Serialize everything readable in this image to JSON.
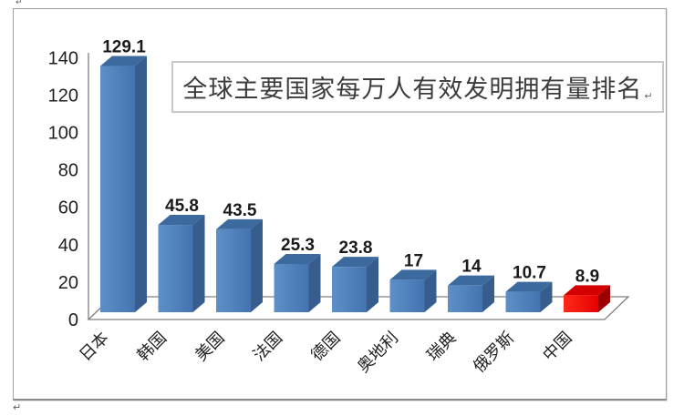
{
  "page": {
    "paragraph_mark_top": "↵",
    "paragraph_mark_bottom": "↵",
    "title_paragraph_mark": "↵"
  },
  "chart_data": {
    "type": "bar",
    "style": "3d-column",
    "title": "全球主要国家每万人有效发明拥有量排名",
    "categories": [
      "日本",
      "韩国",
      "美国",
      "法国",
      "德国",
      "奥地利",
      "瑞典",
      "俄罗斯",
      "中国"
    ],
    "values": [
      129.1,
      45.8,
      43.5,
      25.3,
      23.8,
      17,
      14,
      10.7,
      8.9
    ],
    "value_labels": [
      "129.1",
      "45.8",
      "43.5",
      "25.3",
      "23.8",
      "17",
      "14",
      "10.7",
      "8.9"
    ],
    "highlight_index": 8,
    "ylabel": "",
    "xlabel": "",
    "ylim": [
      0,
      140
    ],
    "yticks": [
      0,
      20,
      40,
      60,
      80,
      100,
      120,
      140
    ],
    "grid": false,
    "legend_position": "none",
    "colors": {
      "bar_front": "#4a7ebb",
      "bar_front_light": "#5e90c8",
      "bar_front_dark": "#4474b0",
      "bar_side": "#365d8d",
      "bar_top": "#3c6a9e",
      "highlight_front": "#f80000",
      "highlight_front_light": "#ff2a1a",
      "highlight_front_dark": "#e60000",
      "highlight_side": "#9d0000",
      "highlight_top": "#d40000",
      "axis_line": "#808080",
      "text": "#1f1f1f"
    }
  }
}
